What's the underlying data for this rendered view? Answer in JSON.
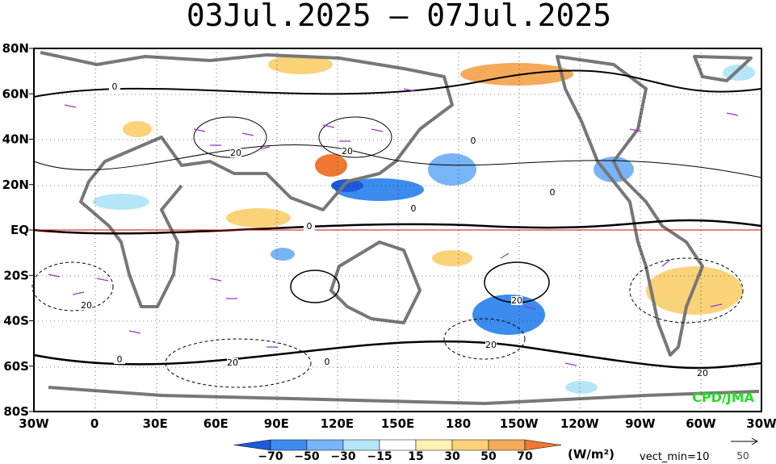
{
  "title": "03Jul.2025 – 07Jul.2025",
  "lat_labels": [
    "80N",
    "60N",
    "40N",
    "20N",
    "EQ",
    "20S",
    "40S",
    "60S",
    "80S"
  ],
  "lon_labels": [
    "30W",
    "0",
    "30E",
    "60E",
    "90E",
    "120E",
    "150E",
    "180",
    "150W",
    "120W",
    "90W",
    "60W",
    "30W"
  ],
  "colorbar": {
    "labels": [
      "−70",
      "−50",
      "−30",
      "−15",
      "15",
      "30",
      "50",
      "70"
    ],
    "unit": "(W/m²)"
  },
  "vector_note": "vect_min=10",
  "reference_vector": "50",
  "credit": "CPD/JMA",
  "contour_labels": [
    "0",
    "0",
    "0",
    "0",
    "0",
    "20",
    "20",
    "20",
    "20",
    "20",
    "0",
    "0",
    "20",
    "20"
  ]
}
